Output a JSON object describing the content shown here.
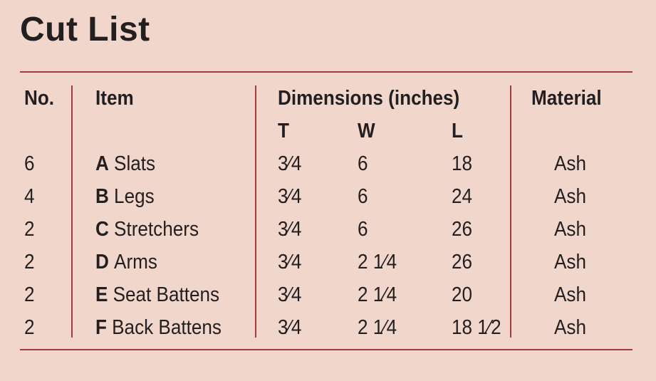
{
  "title": "Cut List",
  "headers": {
    "no": "No.",
    "item": "Item",
    "dimensions": "Dimensions (inches)",
    "t": "T",
    "w": "W",
    "l": "L",
    "material": "Material"
  },
  "rows": [
    {
      "no": "6",
      "letter": "A",
      "item": "Slats",
      "t": "3⁄4",
      "w": "6",
      "l": "18",
      "material": "Ash"
    },
    {
      "no": "4",
      "letter": "B",
      "item": "Legs",
      "t": "3⁄4",
      "w": "6",
      "l": "24",
      "material": "Ash"
    },
    {
      "no": "2",
      "letter": "C",
      "item": "Stretchers",
      "t": "3⁄4",
      "w": "6",
      "l": "26",
      "material": "Ash"
    },
    {
      "no": "2",
      "letter": "D",
      "item": "Arms",
      "t": "3⁄4",
      "w": "2 1⁄4",
      "l": "26",
      "material": "Ash"
    },
    {
      "no": "2",
      "letter": "E",
      "item": "Seat Battens",
      "t": "3⁄4",
      "w": "2 1⁄4",
      "l": "20",
      "material": "Ash"
    },
    {
      "no": "2",
      "letter": "F",
      "item": "Back Battens",
      "t": "3⁄4",
      "w": "2 1⁄4",
      "l": "18 1⁄2",
      "material": "Ash"
    }
  ]
}
